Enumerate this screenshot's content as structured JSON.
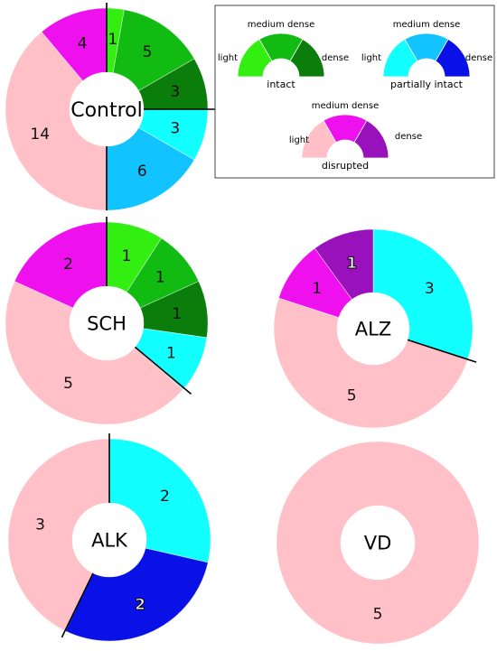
{
  "legend": {
    "groups": [
      {
        "name": "intact",
        "light_label": "light",
        "medium_label": "medium dense",
        "dense_label": "dense",
        "colors": [
          "#33ee11",
          "#11bb11",
          "#0a7d0a"
        ]
      },
      {
        "name": "partially intact",
        "light_label": "light",
        "medium_label": "medium dense",
        "dense_label": "dense",
        "colors": [
          "#11ffff",
          "#11c3ff",
          "#0a11e6"
        ]
      },
      {
        "name": "disrupted",
        "light_label": "light",
        "medium_label": "medium dense",
        "dense_label": "dense",
        "colors": [
          "#ffc0c8",
          "#ee11ee",
          "#9911bb"
        ]
      }
    ]
  },
  "chart_data": [
    {
      "type": "donut",
      "title": "Control",
      "categories": [
        "intact light",
        "intact medium dense",
        "intact dense",
        "partially intact light",
        "partially intact medium dense",
        "disrupted light",
        "disrupted medium dense"
      ],
      "values": [
        1,
        5,
        3,
        3,
        6,
        14,
        4
      ],
      "labels": [
        "1",
        "5",
        "3",
        "3",
        "6",
        "14",
        "4"
      ],
      "colors": [
        "#33ee11",
        "#11bb11",
        "#0a7d0a",
        "#11ffff",
        "#11c3ff",
        "#ffc0c8",
        "#ee11ee"
      ]
    },
    {
      "type": "donut",
      "title": "SCH",
      "categories": [
        "intact light",
        "intact medium dense",
        "intact dense",
        "partially intact light",
        "disrupted light",
        "disrupted medium dense"
      ],
      "values": [
        1,
        1,
        1,
        1,
        5,
        2
      ],
      "labels": [
        "1",
        "1",
        "1",
        "1",
        "5",
        "2"
      ],
      "colors": [
        "#33ee11",
        "#11bb11",
        "#0a7d0a",
        "#11ffff",
        "#ffc0c8",
        "#ee11ee"
      ]
    },
    {
      "type": "donut",
      "title": "ALZ",
      "categories": [
        "partially intact light",
        "disrupted light",
        "disrupted medium dense",
        "disrupted dense"
      ],
      "values": [
        3,
        5,
        1,
        1
      ],
      "labels": [
        "3",
        "5",
        "1",
        "1"
      ],
      "colors": [
        "#11ffff",
        "#ffc0c8",
        "#ee11ee",
        "#9911bb"
      ]
    },
    {
      "type": "donut",
      "title": "ALK",
      "categories": [
        "partially intact light",
        "partially intact dense",
        "disrupted light"
      ],
      "values": [
        2,
        2,
        3
      ],
      "labels": [
        "2",
        "2",
        "3"
      ],
      "colors": [
        "#11ffff",
        "#0a11e6",
        "#ffc0c8"
      ]
    },
    {
      "type": "donut",
      "title": "VD",
      "categories": [
        "disrupted light"
      ],
      "values": [
        5
      ],
      "labels": [
        "5"
      ],
      "colors": [
        "#ffc0c8"
      ]
    }
  ]
}
